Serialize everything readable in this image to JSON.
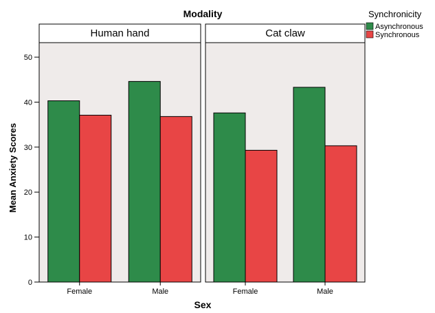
{
  "chart_data": {
    "type": "bar",
    "title": "Modality",
    "xlabel": "Sex",
    "ylabel": "Mean Anxiety Scores",
    "ylim": [
      0,
      52
    ],
    "yticks": [
      0,
      10,
      20,
      30,
      40,
      50
    ],
    "categories": [
      "Female",
      "Male"
    ],
    "legend": {
      "title": "Synchronicity",
      "placement": "top-right",
      "entries": [
        "Asynchronous",
        "Synchronous"
      ]
    },
    "colors": {
      "Asynchronous": "#2e8b4a",
      "Synchronous": "#e84545",
      "panel_background": "#efebea"
    },
    "grid": false,
    "panels": [
      {
        "title": "Human hand",
        "series": [
          {
            "name": "Asynchronous",
            "values": [
              40.3,
              44.6
            ]
          },
          {
            "name": "Synchronous",
            "values": [
              37.1,
              36.8
            ]
          }
        ]
      },
      {
        "title": "Cat claw",
        "series": [
          {
            "name": "Asynchronous",
            "values": [
              37.6,
              43.3
            ]
          },
          {
            "name": "Synchronous",
            "values": [
              29.3,
              30.3
            ]
          }
        ]
      }
    ]
  }
}
